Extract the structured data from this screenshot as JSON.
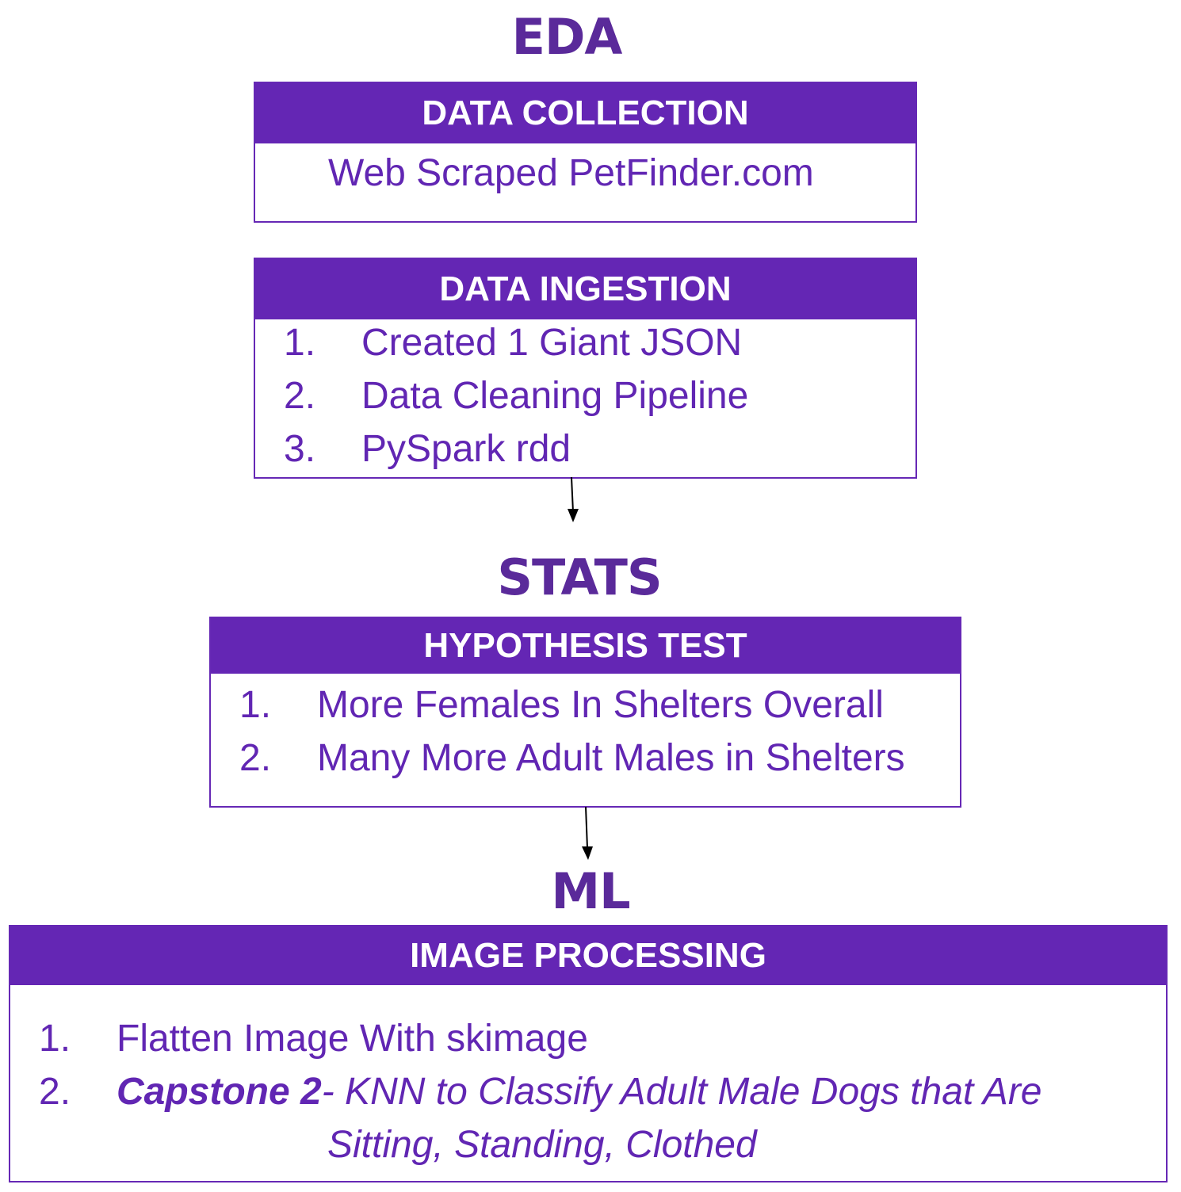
{
  "eda": {
    "title": "EDA",
    "data_collection": {
      "header": "DATA COLLECTION",
      "body": "Web Scraped PetFinder.com"
    },
    "data_ingestion": {
      "header": "DATA INGESTION",
      "items": [
        {
          "num": "1.",
          "text": "Created 1 Giant JSON"
        },
        {
          "num": "2.",
          "text": "Data Cleaning Pipeline"
        },
        {
          "num": "3.",
          "text": "PySpark rdd"
        }
      ]
    }
  },
  "stats": {
    "title": "STATS",
    "hypothesis_test": {
      "header": "HYPOTHESIS TEST",
      "items": [
        {
          "num": "1.",
          "text": "More Females In Shelters Overall"
        },
        {
          "num": "2.",
          "text": "Many More Adult Males in Shelters"
        }
      ]
    }
  },
  "ml": {
    "title": "ML",
    "image_processing": {
      "header": "IMAGE PROCESSING",
      "items": [
        {
          "num": "1.",
          "text": "Flatten Image With skimage"
        },
        {
          "num": "2.",
          "bold_text": "Capstone 2",
          "text": "- KNN to Classify  Adult Male Dogs that Are",
          "continuation": "Sitting, Standing, Clothed"
        }
      ]
    }
  },
  "colors": {
    "header_bg": "#6426b4",
    "title": "#5a2a9a",
    "text": "#6126b3"
  }
}
